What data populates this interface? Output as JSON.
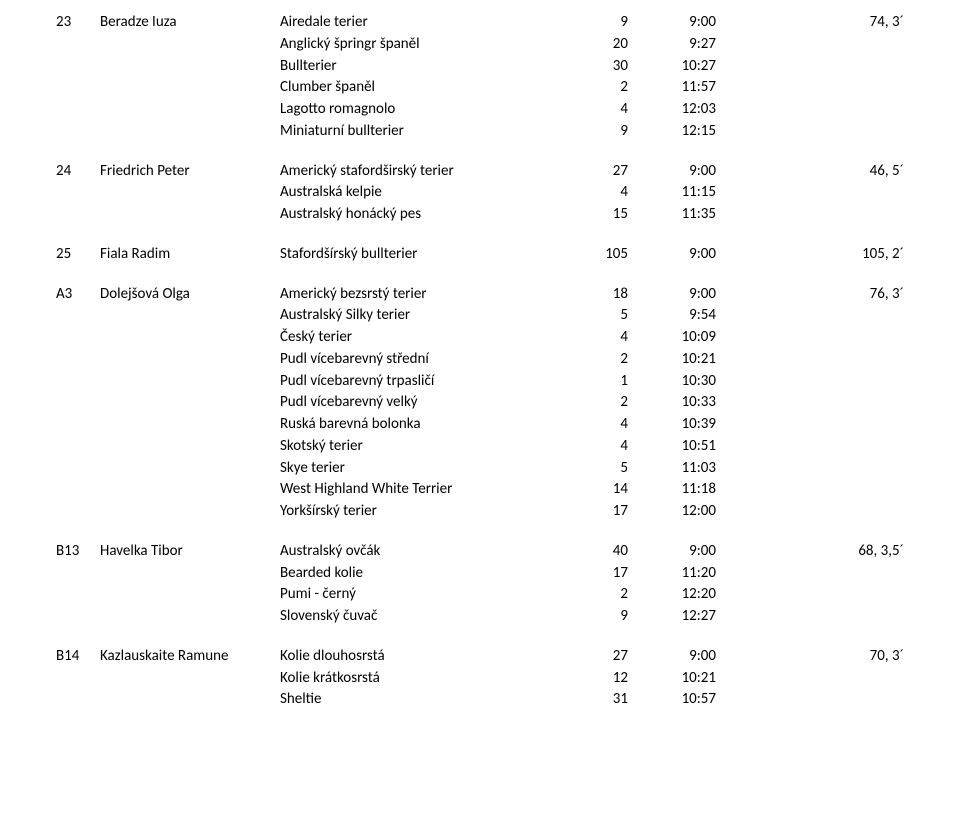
{
  "entries": [
    {
      "id": "23",
      "name": "Beradze Iuza",
      "ref": "74,  3´",
      "rows": [
        {
          "breed": "Airedale terier",
          "n": "9",
          "t": "9:00"
        },
        {
          "breed": "Anglický špringr španěl",
          "n": "20",
          "t": "9:27"
        },
        {
          "breed": "Bullterier",
          "n": "30",
          "t": "10:27"
        },
        {
          "breed": "Clumber španěl",
          "n": "2",
          "t": "11:57"
        },
        {
          "breed": "Lagotto romagnolo",
          "n": "4",
          "t": "12:03"
        },
        {
          "breed": "Miniaturní bullterier",
          "n": "9",
          "t": "12:15"
        }
      ]
    },
    {
      "id": "24",
      "name": "Friedrich Peter",
      "ref": "46,  5´",
      "rows": [
        {
          "breed": "Americký stafordširský terier",
          "n": "27",
          "t": "9:00"
        },
        {
          "breed": "Australská kelpie",
          "n": "4",
          "t": "11:15"
        },
        {
          "breed": "Australský honácký pes",
          "n": "15",
          "t": "11:35"
        }
      ]
    },
    {
      "id": "25",
      "name": "Fiala Radim",
      "ref": "105,  2´",
      "rows": [
        {
          "breed": "Stafordšírský bullterier",
          "n": "105",
          "t": "9:00"
        }
      ]
    },
    {
      "id": "A3",
      "name": "Dolejšová Olga",
      "ref": "76,  3´",
      "rows": [
        {
          "breed": "Americký bezsrstý terier",
          "n": "18",
          "t": "9:00"
        },
        {
          "breed": "Australský Silky terier",
          "n": "5",
          "t": "9:54"
        },
        {
          "breed": "Český terier",
          "n": "4",
          "t": "10:09"
        },
        {
          "breed": "Pudl vícebarevný střední",
          "n": "2",
          "t": "10:21"
        },
        {
          "breed": "Pudl vícebarevný trpasličí",
          "n": "1",
          "t": "10:30"
        },
        {
          "breed": "Pudl vícebarevný velký",
          "n": "2",
          "t": "10:33"
        },
        {
          "breed": "Ruská barevná bolonka",
          "n": "4",
          "t": "10:39"
        },
        {
          "breed": "Skotský terier",
          "n": "4",
          "t": "10:51"
        },
        {
          "breed": "Skye terier",
          "n": "5",
          "t": "11:03"
        },
        {
          "breed": "West Highland White Terrier",
          "n": "14",
          "t": "11:18"
        },
        {
          "breed": "Yorkšírský terier",
          "n": "17",
          "t": "12:00"
        }
      ]
    },
    {
      "id": "B13",
      "name": "Havelka Tibor",
      "ref": "68,  3,5´",
      "rows": [
        {
          "breed": "Australský ovčák",
          "n": "40",
          "t": "9:00"
        },
        {
          "breed": "Bearded kolie",
          "n": "17",
          "t": "11:20"
        },
        {
          "breed": "Pumi - černý",
          "n": "2",
          "t": "12:20"
        },
        {
          "breed": "Slovenský čuvač",
          "n": "9",
          "t": "12:27"
        }
      ]
    },
    {
      "id": "B14",
      "name": "Kazlauskaite Ramune",
      "ref": "70,  3´",
      "rows": [
        {
          "breed": "Kolie dlouhosrstá",
          "n": "27",
          "t": "9:00"
        },
        {
          "breed": "Kolie krátkosrstá",
          "n": "12",
          "t": "10:21"
        },
        {
          "breed": "Sheltie",
          "n": "31",
          "t": "10:57"
        }
      ]
    }
  ]
}
